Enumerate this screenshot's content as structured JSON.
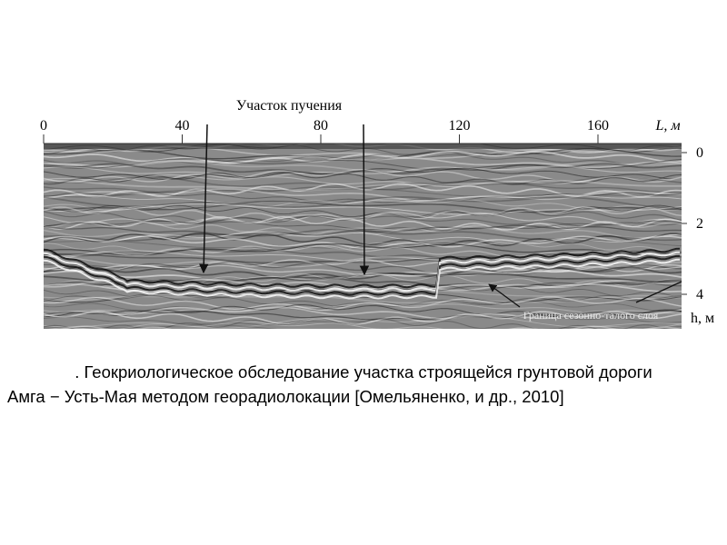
{
  "figure": {
    "annotation": "Участок пучения",
    "boundary_label": "Граница сезонно-талого слоя",
    "x_axis": {
      "label": "L, м",
      "ticks": [
        0,
        40,
        80,
        120,
        160
      ]
    },
    "y_axis": {
      "label": "h, м",
      "ticks": [
        0,
        2,
        4
      ]
    }
  },
  "caption": {
    "lines": [
      ". Геокриологическое обследование участка строящейся грунтовой дороги",
      "Амга − Усть-Мая методом георадиолокации [Омельяненко, и др., 2010]"
    ]
  }
}
